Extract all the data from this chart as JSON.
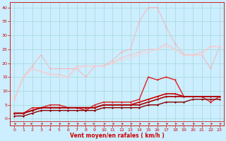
{
  "xlabel": "Vent moyen/en rafales ( km/h )",
  "background_color": "#cceeff",
  "grid_color": "#aadddd",
  "text_color": "#cc0000",
  "xlim": [
    -0.5,
    23.5
  ],
  "ylim": [
    -2.5,
    42
  ],
  "xticks": [
    0,
    1,
    2,
    3,
    4,
    5,
    6,
    7,
    8,
    9,
    10,
    11,
    12,
    13,
    14,
    15,
    16,
    17,
    18,
    19,
    20,
    21,
    22,
    23
  ],
  "yticks": [
    0,
    5,
    10,
    15,
    20,
    25,
    30,
    35,
    40
  ],
  "series": [
    {
      "x": [
        0,
        1,
        2,
        3,
        4,
        5,
        6,
        7,
        8,
        9,
        10,
        11,
        12,
        13,
        14,
        15,
        16,
        17,
        18,
        19,
        20,
        21,
        22,
        23
      ],
      "y": [
        7,
        15,
        19,
        23,
        18,
        18,
        18,
        18,
        15,
        19,
        19,
        21,
        24,
        25,
        35,
        40,
        40,
        33,
        27,
        23,
        23,
        23,
        18,
        26
      ],
      "color": "#ffaaaa",
      "alpha": 0.75,
      "lw": 0.8,
      "marker": "D",
      "ms": 1.5
    },
    {
      "x": [
        0,
        1,
        2,
        3,
        4,
        5,
        6,
        7,
        8,
        9,
        10,
        11,
        12,
        13,
        14,
        15,
        16,
        17,
        18,
        19,
        20,
        21,
        22,
        23
      ],
      "y": [
        7,
        15,
        18,
        17,
        16,
        16,
        15,
        19,
        19,
        19,
        19,
        20,
        22,
        23,
        24,
        25,
        25,
        27,
        25,
        23,
        23,
        24,
        26,
        26
      ],
      "color": "#ffbbbb",
      "alpha": 0.75,
      "lw": 0.8,
      "marker": "D",
      "ms": 1.5
    },
    {
      "x": [
        0,
        1,
        2,
        3,
        4,
        5,
        6,
        7,
        8,
        9,
        10,
        11,
        12,
        13,
        14,
        15,
        16,
        17,
        18,
        19,
        20,
        21,
        22,
        23
      ],
      "y": [
        7,
        15,
        18,
        17,
        16,
        15,
        15,
        18,
        19,
        19,
        19,
        20,
        21,
        22,
        23,
        24,
        25,
        26,
        25,
        23,
        23,
        23,
        26,
        26
      ],
      "color": "#ffcccc",
      "alpha": 0.65,
      "lw": 0.8,
      "marker": "D",
      "ms": 1.5
    },
    {
      "x": [
        0,
        1,
        2,
        3,
        4,
        5,
        6,
        7,
        8,
        9,
        10,
        11,
        12,
        13,
        14,
        15,
        16,
        17,
        18,
        19,
        20,
        21,
        22,
        23
      ],
      "y": [
        2,
        2,
        4,
        4,
        5,
        5,
        4,
        4,
        3,
        5,
        6,
        6,
        6,
        6,
        7,
        15,
        14,
        15,
        14,
        8,
        8,
        8,
        6,
        8
      ],
      "color": "#dd2222",
      "alpha": 1.0,
      "lw": 1.0,
      "marker": "D",
      "ms": 1.5
    },
    {
      "x": [
        0,
        1,
        2,
        3,
        4,
        5,
        6,
        7,
        8,
        9,
        10,
        11,
        12,
        13,
        14,
        15,
        16,
        17,
        18,
        19,
        20,
        21,
        22,
        23
      ],
      "y": [
        2,
        2,
        3,
        4,
        4,
        4,
        4,
        4,
        4,
        4,
        5,
        5,
        5,
        5,
        6,
        7,
        8,
        9,
        9,
        8,
        8,
        8,
        8,
        8
      ],
      "color": "#cc0000",
      "alpha": 1.0,
      "lw": 1.2,
      "marker": "D",
      "ms": 1.5
    },
    {
      "x": [
        0,
        1,
        2,
        3,
        4,
        5,
        6,
        7,
        8,
        9,
        10,
        11,
        12,
        13,
        14,
        15,
        16,
        17,
        18,
        19,
        20,
        21,
        22,
        23
      ],
      "y": [
        2,
        2,
        3,
        4,
        4,
        4,
        4,
        4,
        4,
        4,
        5,
        5,
        5,
        5,
        5,
        6,
        7,
        8,
        8,
        8,
        8,
        8,
        8,
        8
      ],
      "color": "#aa0000",
      "alpha": 1.0,
      "lw": 1.2,
      "marker": "D",
      "ms": 1.5
    },
    {
      "x": [
        0,
        1,
        2,
        3,
        4,
        5,
        6,
        7,
        8,
        9,
        10,
        11,
        12,
        13,
        14,
        15,
        16,
        17,
        18,
        19,
        20,
        21,
        22,
        23
      ],
      "y": [
        1,
        1,
        2,
        3,
        3,
        3,
        3,
        3,
        3,
        3,
        4,
        4,
        4,
        4,
        4,
        5,
        5,
        6,
        6,
        6,
        7,
        7,
        7,
        7
      ],
      "color": "#880000",
      "alpha": 1.0,
      "lw": 1.0,
      "marker": "D",
      "ms": 1.5
    }
  ],
  "arrow_dirs": [
    3,
    1,
    7,
    1,
    1,
    1,
    3,
    1,
    7,
    5,
    1,
    1,
    3,
    1,
    1,
    1,
    1,
    1,
    1,
    7,
    1,
    1,
    1,
    1
  ]
}
